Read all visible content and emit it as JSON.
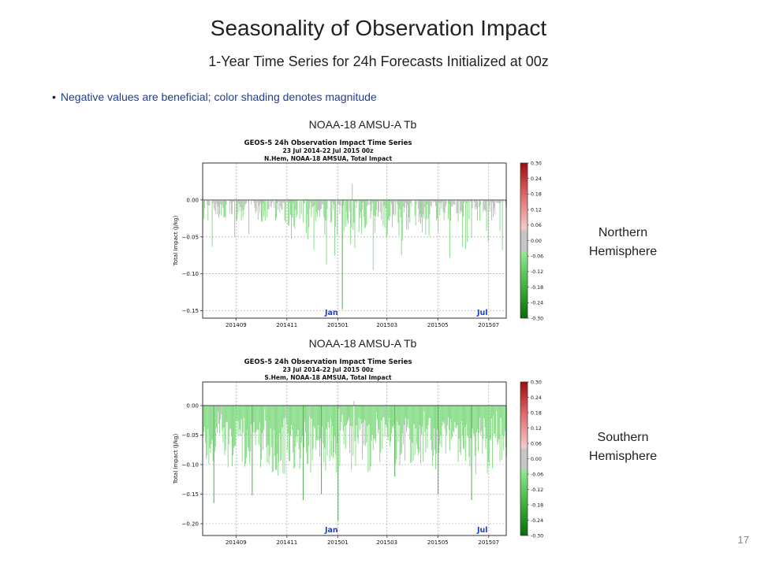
{
  "slide": {
    "title": "Seasonality of Observation Impact",
    "subtitle": "1-Year Time Series for 24h Forecasts Initialized at 00z",
    "bullet": "Negative values are beneficial; color shading denotes magnitude",
    "page_number": "17"
  },
  "panels": [
    {
      "label": "NOAA-18 AMSU-A Tb",
      "hemisphere_line1": "Northern",
      "hemisphere_line2": "Hemisphere"
    },
    {
      "label": "NOAA-18 AMSU-A Tb",
      "hemisphere_line1": "Southern",
      "hemisphere_line2": "Hemisphere"
    }
  ],
  "chart_data": [
    {
      "type": "bar",
      "title": "GEOS-5 24h Observation Impact Time Series",
      "subtitle": [
        "23 Jul 2014-22 Jul 2015 00z",
        "N.Hem, NOAA-18 AMSUA, Total Impact"
      ],
      "ylabel": "Total Impact (J/kg)",
      "ylim": [
        -0.16,
        0.05
      ],
      "yticks": [
        0.0,
        -0.05,
        -0.1,
        -0.15
      ],
      "ytick_labels": [
        "0.00",
        "−0.05",
        "−0.10",
        "−0.15"
      ],
      "xlim": [
        "2014-07-23",
        "2015-07-22"
      ],
      "xticks": [
        "2014-09-01",
        "2014-11-01",
        "2015-01-01",
        "2015-03-01",
        "2015-05-01",
        "2015-07-01"
      ],
      "xtick_labels": [
        "201409",
        "201411",
        "201501",
        "201503",
        "201505",
        "201507"
      ],
      "month_annotations": [
        {
          "text": "Jan",
          "date": "2015-01-01"
        },
        {
          "text": "Jul",
          "date": "2015-07-01"
        }
      ],
      "grid": true,
      "colorbar": {
        "range": [
          -0.3,
          0.3
        ],
        "ticks": [
          0.3,
          0.24,
          0.18,
          0.12,
          0.06,
          0.0,
          -0.06,
          -0.12,
          -0.18,
          -0.24,
          -0.3
        ],
        "tick_labels": [
          "0.30",
          "0.24",
          "0.18",
          "0.12",
          "0.06",
          "0.00",
          "-0.06",
          "-0.12",
          "-0.18",
          "-0.24",
          "-0.30"
        ]
      },
      "series_summary": {
        "typical_range": [
          -0.03,
          0.005
        ],
        "notable_values": [
          {
            "date": "2014-12-18",
            "value": -0.087
          },
          {
            "date": "2014-12-28",
            "value": -0.075
          },
          {
            "date": "2015-01-06",
            "value": -0.148
          },
          {
            "date": "2015-01-18",
            "value": 0.022
          },
          {
            "date": "2015-02-12",
            "value": -0.095
          },
          {
            "date": "2015-03-18",
            "value": -0.075
          },
          {
            "date": "2015-05-15",
            "value": -0.078
          }
        ]
      }
    },
    {
      "type": "bar",
      "title": "GEOS-5 24h Observation Impact Time Series",
      "subtitle": [
        "23 Jul 2014-22 Jul 2015 00z",
        "S.Hem, NOAA-18 AMSUA, Total Impact"
      ],
      "ylabel": "Total Impact (J/kg)",
      "ylim": [
        -0.22,
        0.04
      ],
      "yticks": [
        0.0,
        -0.05,
        -0.1,
        -0.15,
        -0.2
      ],
      "ytick_labels": [
        "0.00",
        "−0.05",
        "−0.10",
        "−0.15",
        "−0.20"
      ],
      "xlim": [
        "2014-07-23",
        "2015-07-22"
      ],
      "xticks": [
        "2014-09-01",
        "2014-11-01",
        "2015-01-01",
        "2015-03-01",
        "2015-05-01",
        "2015-07-01"
      ],
      "xtick_labels": [
        "201409",
        "201411",
        "201501",
        "201503",
        "201505",
        "201507"
      ],
      "month_annotations": [
        {
          "text": "Jan",
          "date": "2015-01-01"
        },
        {
          "text": "Jul",
          "date": "2015-07-01"
        }
      ],
      "grid": true,
      "colorbar": {
        "range": [
          -0.3,
          0.3
        ],
        "ticks": [
          0.3,
          0.24,
          0.18,
          0.12,
          0.06,
          0.0,
          -0.06,
          -0.12,
          -0.18,
          -0.24,
          -0.3
        ],
        "tick_labels": [
          "0.30",
          "0.24",
          "0.18",
          "0.12",
          "0.06",
          "0.00",
          "-0.06",
          "-0.12",
          "-0.18",
          "-0.24",
          "-0.30"
        ]
      },
      "series_summary": {
        "typical_range": [
          -0.12,
          -0.02
        ],
        "notable_values": [
          {
            "date": "2014-08-05",
            "value": -0.165
          },
          {
            "date": "2014-09-20",
            "value": -0.152
          },
          {
            "date": "2014-11-20",
            "value": -0.16
          },
          {
            "date": "2014-12-12",
            "value": -0.15
          },
          {
            "date": "2015-01-01",
            "value": -0.195
          },
          {
            "date": "2015-01-20",
            "value": 0.008
          },
          {
            "date": "2015-03-10",
            "value": -0.12
          },
          {
            "date": "2015-05-01",
            "value": -0.15
          },
          {
            "date": "2015-06-10",
            "value": -0.16
          }
        ]
      }
    }
  ],
  "colors": {
    "bar_neutral": "#bdbdbd",
    "bar_negative_light": "#7fd97f",
    "bar_negative_dark": "#3f9f3f",
    "bar_positive": "#b4b4b4",
    "month_annotation": "#1f3fbf",
    "cbar_top": "#9e0d0d",
    "cbar_bottom": "#0a6a0a"
  }
}
